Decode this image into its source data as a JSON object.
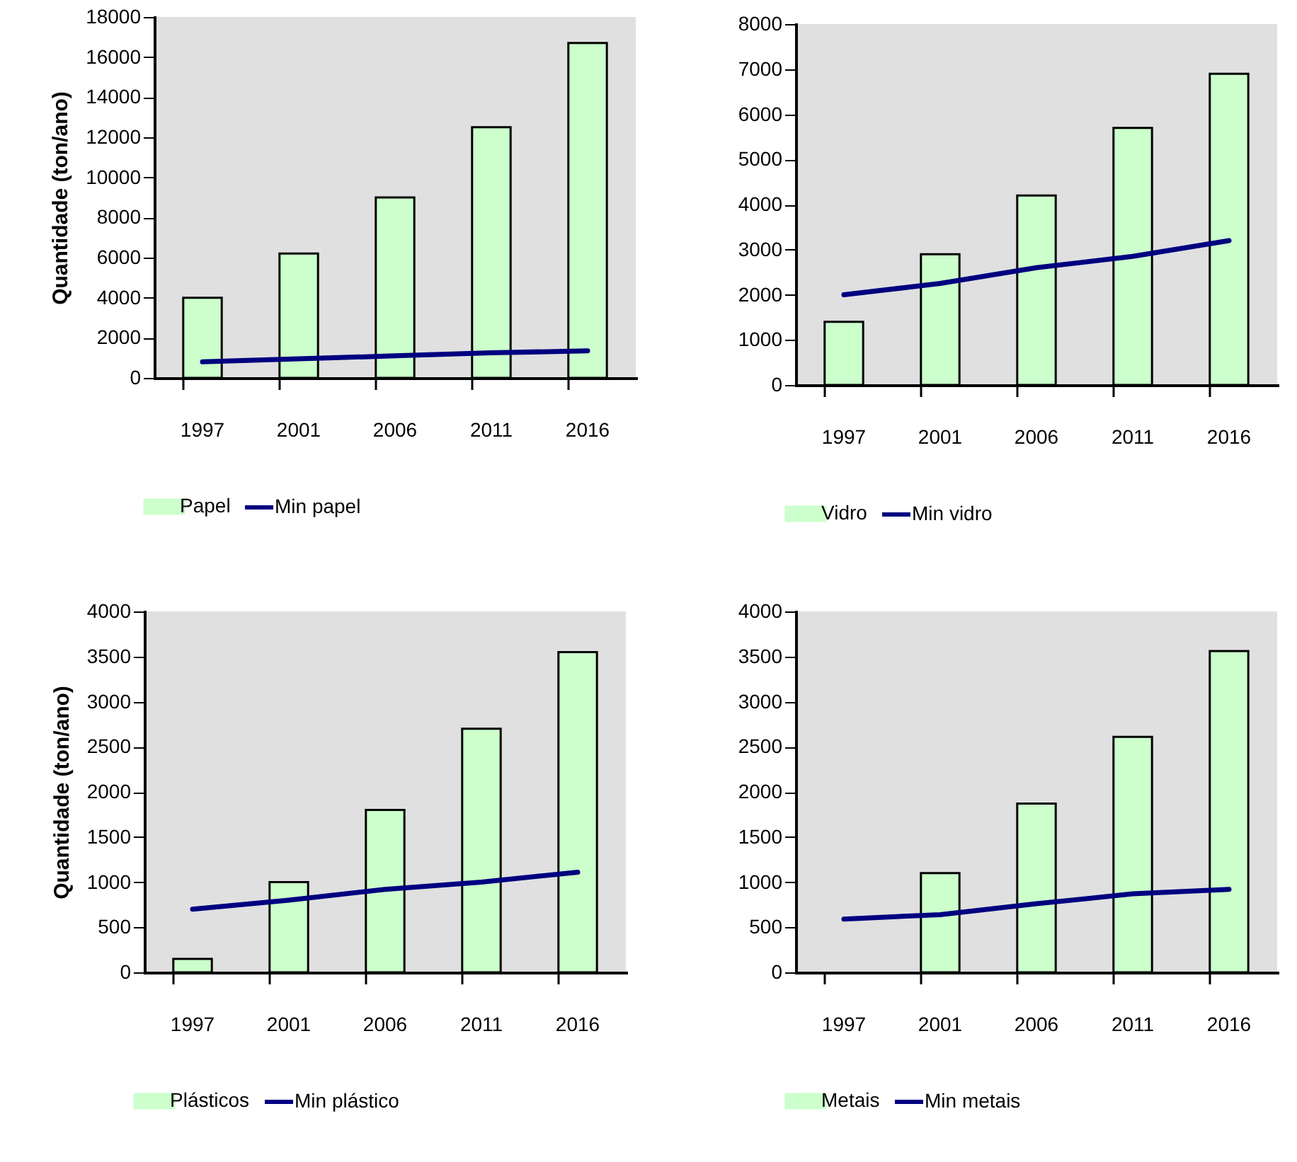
{
  "chart_data": [
    {
      "type": "bar",
      "ylabel": "Quantidade (ton/ano)",
      "categories": [
        "1997",
        "2001",
        "2006",
        "2011",
        "2016"
      ],
      "series": [
        {
          "name": "Papel",
          "color": "#ccffcc",
          "values": [
            4000,
            6200,
            9000,
            12500,
            16700
          ]
        },
        {
          "name": "Min papel",
          "type": "line",
          "color": "#000080",
          "values": [
            800,
            950,
            1100,
            1250,
            1350
          ]
        }
      ],
      "ylim": [
        0,
        18000
      ],
      "yticks": [
        0,
        2000,
        4000,
        6000,
        8000,
        10000,
        12000,
        14000,
        16000,
        18000
      ],
      "legend": "bottom",
      "grid": false
    },
    {
      "type": "bar",
      "categories": [
        "1997",
        "2001",
        "2006",
        "2011",
        "2016"
      ],
      "series": [
        {
          "name": "Vidro",
          "color": "#ccffcc",
          "values": [
            1400,
            2900,
            4200,
            5700,
            6900
          ]
        },
        {
          "name": "Min vidro",
          "type": "line",
          "color": "#000080",
          "values": [
            2000,
            2250,
            2600,
            2850,
            3200
          ]
        }
      ],
      "ylim": [
        0,
        8000
      ],
      "yticks": [
        0,
        1000,
        2000,
        3000,
        4000,
        5000,
        6000,
        7000,
        8000
      ],
      "legend": "bottom",
      "grid": false
    },
    {
      "type": "bar",
      "ylabel": "Quantidade (ton/ano)",
      "categories": [
        "1997",
        "2001",
        "2006",
        "2011",
        "2016"
      ],
      "series": [
        {
          "name": "Plásticos",
          "color": "#ccffcc",
          "values": [
            150,
            1000,
            1800,
            2700,
            3550
          ]
        },
        {
          "name": "Min plástico",
          "type": "line",
          "color": "#000080",
          "values": [
            700,
            800,
            920,
            1000,
            1110
          ]
        }
      ],
      "ylim": [
        0,
        4000
      ],
      "yticks": [
        0,
        500,
        1000,
        1500,
        2000,
        2500,
        3000,
        3500,
        4000
      ],
      "legend": "bottom",
      "grid": false
    },
    {
      "type": "bar",
      "categories": [
        "1997",
        "2001",
        "2006",
        "2011",
        "2016"
      ],
      "series": [
        {
          "name": "Metais",
          "color": "#ccffcc",
          "values": [
            null,
            1100,
            1870,
            2610,
            3560
          ]
        },
        {
          "name": "Min metais",
          "type": "line",
          "color": "#000080",
          "values": [
            590,
            640,
            760,
            870,
            920
          ]
        }
      ],
      "ylim": [
        0,
        4000
      ],
      "yticks": [
        0,
        500,
        1000,
        1500,
        2000,
        2500,
        3000,
        3500,
        4000
      ],
      "legend": "bottom",
      "grid": false
    }
  ]
}
